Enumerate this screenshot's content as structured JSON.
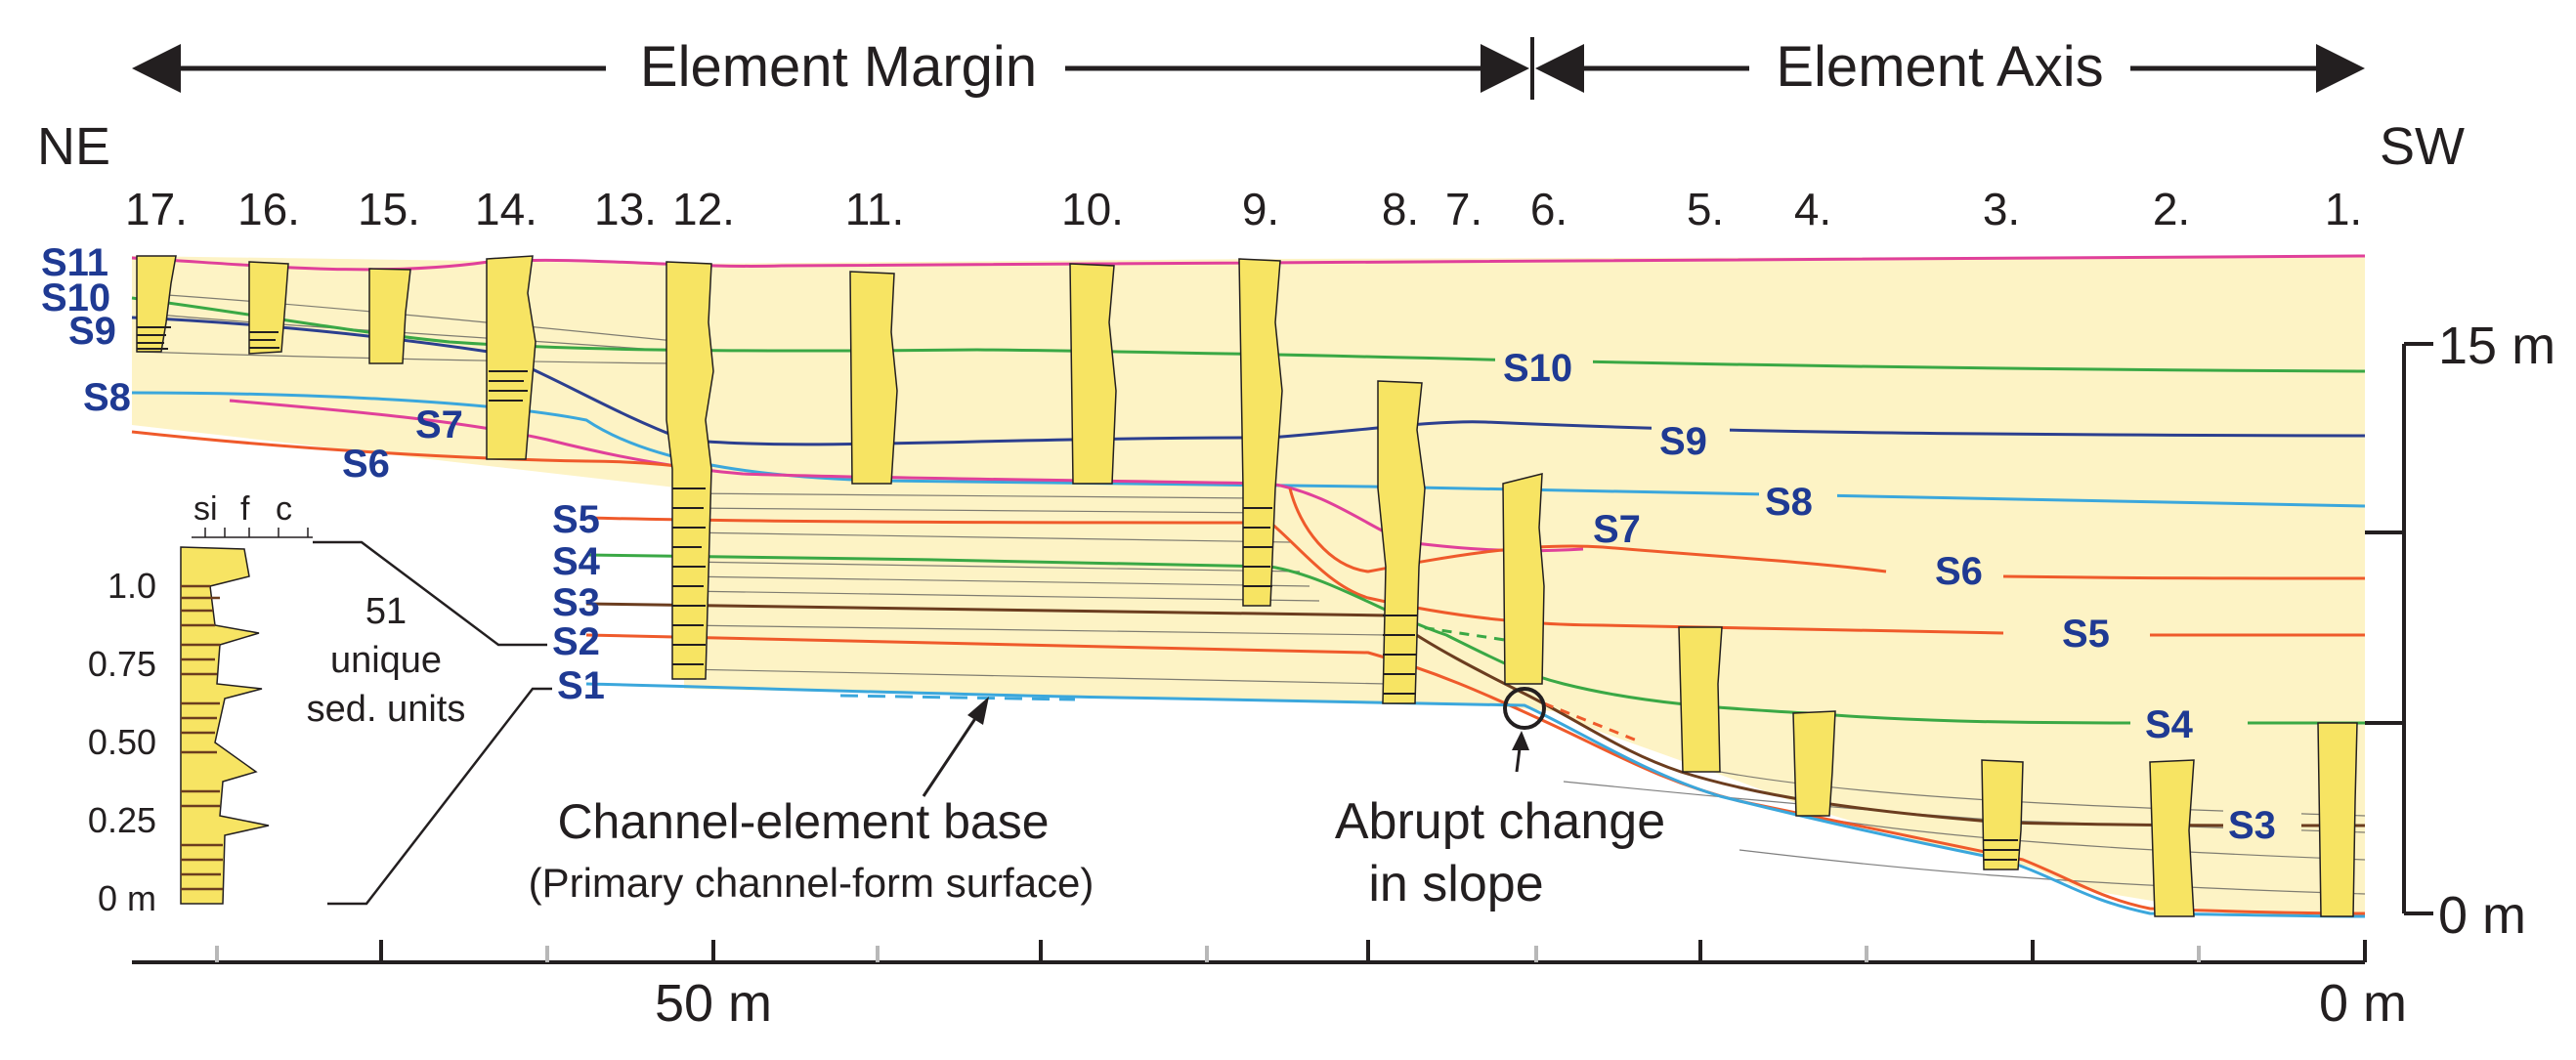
{
  "header": {
    "left_label": "Element Margin",
    "right_label": "Element Axis"
  },
  "directions": {
    "left": "NE",
    "right": "SW"
  },
  "sections": [
    "17.",
    "16.",
    "15.",
    "14.",
    "13.",
    "12.",
    "11.",
    "10.",
    "9.",
    "8.",
    "7.",
    "6.",
    "5.",
    "4.",
    "3.",
    "2.",
    "1."
  ],
  "surfaces": {
    "left": [
      "S11",
      "S10",
      "S9",
      "S8",
      "S7",
      "S6",
      "S5",
      "S4",
      "S3",
      "S2",
      "S1"
    ],
    "right": [
      "S10",
      "S9",
      "S8",
      "S7",
      "S6",
      "S5",
      "S4",
      "S3"
    ]
  },
  "vertical_scale": {
    "top": "15 m",
    "bottom": "0 m"
  },
  "horizontal_scale": {
    "mid": "50 m",
    "end": "0 m"
  },
  "legend": {
    "grain_labels": [
      "si",
      "f",
      "c"
    ],
    "y_ticks": [
      "1.0",
      "0.75",
      "0.50",
      "0.25",
      "0 m"
    ],
    "note": [
      "51",
      "unique",
      "sed. units"
    ]
  },
  "annotations": {
    "base": [
      "Channel-element base",
      "(Primary channel-form surface)"
    ],
    "slope": [
      "Abrupt change",
      "in slope"
    ]
  },
  "colors": {
    "fill": "#fdf3c5",
    "column": "#f7e463",
    "magenta": "#e0409a",
    "green": "#3aa845",
    "navy": "#2c3f8f",
    "cyan": "#3ba7dc",
    "orange": "#ef5a2b",
    "brown": "#6b3d1f",
    "label_blue": "#1f3a93"
  }
}
